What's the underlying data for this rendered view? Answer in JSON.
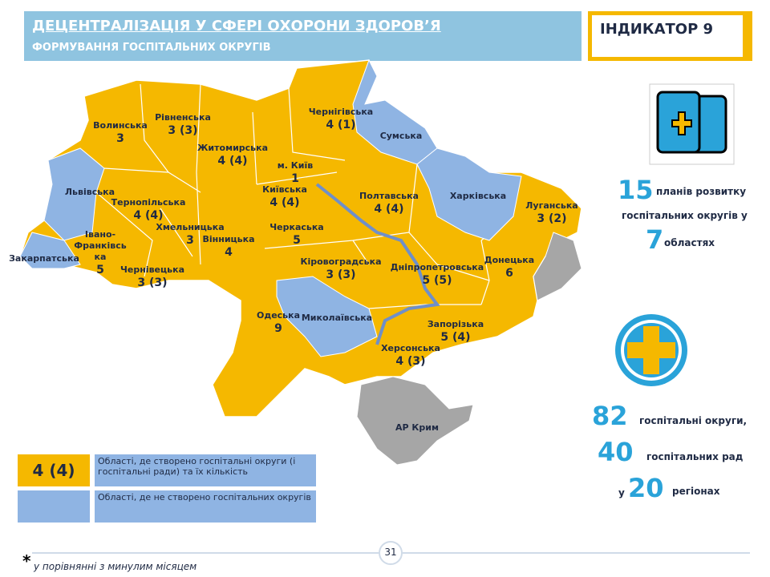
{
  "header": {
    "title": "ДЕЦЕНТРАЛІЗАЦІЯ У СФЕРІ ОХОРОНИ ЗДОРОВ’Я",
    "subtitle": "ФОРМУВАННЯ ГОСПІТАЛЬНИХ ОКРУГІВ",
    "indicator": "ІНДИКАТОР 9"
  },
  "map": {
    "regions": [
      {
        "name": "Волинська",
        "value": "3"
      },
      {
        "name": "Рівненська",
        "value": "3 (3)"
      },
      {
        "name": "Чернігівська",
        "value": "4 (1)"
      },
      {
        "name": "Сумська"
      },
      {
        "name": "Житомирська",
        "value": "4 (4)"
      },
      {
        "name": "м. Київ",
        "value": "1"
      },
      {
        "name": "Київська",
        "value": "4 (4)"
      },
      {
        "name": "Львівська"
      },
      {
        "name": "Тернопільська",
        "value": "4 (4)"
      },
      {
        "name": "Полтавська",
        "value": "4 (4)"
      },
      {
        "name": "Харківська"
      },
      {
        "name": "Луганська",
        "value": "3 (2)"
      },
      {
        "name": "Хмельницька",
        "value": "3"
      },
      {
        "name": "Вінницька",
        "value": "4"
      },
      {
        "name": "Черкаська",
        "value": "5"
      },
      {
        "name": "Івано-Франківська",
        "value": "5"
      },
      {
        "name": "Закарпатська"
      },
      {
        "name": "Чернівецька",
        "value": "3 (3)"
      },
      {
        "name": "Кіровоградська",
        "value": "3 (3)"
      },
      {
        "name": "Дніпропетровська",
        "value": "5 (5)"
      },
      {
        "name": "Донецька",
        "value": "6"
      },
      {
        "name": "Одеська",
        "value": "9"
      },
      {
        "name": "Миколаївська"
      },
      {
        "name": "Запорізька",
        "value": "5 (4)"
      },
      {
        "name": "Херсонська",
        "value": "4 (3)"
      },
      {
        "name": "АР Крим"
      }
    ]
  },
  "legend": [
    {
      "sample": "4 (4)",
      "text": "Області, де створено госпітальні округи (і госпітальні ради) та їх кількість"
    },
    {
      "text": "Області, де не створено госпітальних округів"
    }
  ],
  "stats": {
    "plans": "15",
    "plans_text_1": "планів розвитку",
    "plans_text_2": "госпітальних округів у",
    "oblasts": "7",
    "oblasts_text": "областях",
    "districts": "82",
    "districts_text": "госпітальні округи,",
    "councils": "40",
    "councils_text": "госпітальних рад",
    "regions_pre": "у",
    "regions": "20",
    "regions_text": "регіонах"
  },
  "footer": {
    "page": "31",
    "asterisk": "*",
    "note": "у порівнянні з минулим місяцем"
  }
}
